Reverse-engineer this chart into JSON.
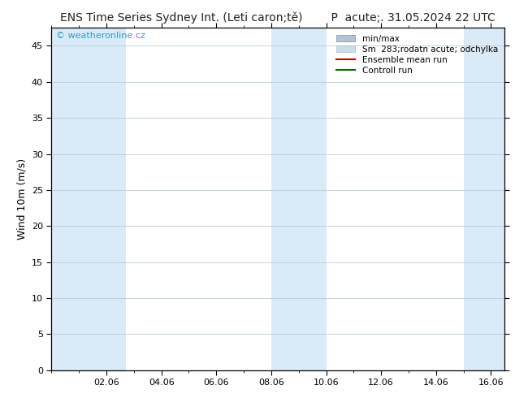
{
  "title_left": "ENS Time Series Sydney Int. (Leti caron;tě)",
  "title_right": "P  acute;. 31.05.2024 22 UTC",
  "ylabel": "Wind 10m (m/s)",
  "ylim": [
    0,
    47.5
  ],
  "yticks": [
    0,
    5,
    10,
    15,
    20,
    25,
    30,
    35,
    40,
    45
  ],
  "bg_color": "#ffffff",
  "plot_bg_color": "#ffffff",
  "band_color": "#daeaf7",
  "x_tick_labels": [
    "02.06",
    "04.06",
    "06.06",
    "08.06",
    "10.06",
    "12.06",
    "14.06",
    "16.06"
  ],
  "x_tick_positions": [
    2,
    4,
    6,
    8,
    10,
    12,
    14,
    16
  ],
  "xlim_min": 0.0,
  "xlim_max": 16.5,
  "watermark_text": "© weatheronline.cz",
  "watermark_color": "#3399cc",
  "legend_label_minmax": "min/max",
  "legend_label_std": "Sm  283;rodatn acute; odchylka",
  "legend_label_ens": "Ensemble mean run",
  "legend_label_ctrl": "Controll run",
  "color_minmax": "#b0c4d8",
  "color_std": "#ccdde8",
  "color_ens": "#cc0000",
  "color_ctrl": "#006600",
  "title_fontsize": 10,
  "tick_fontsize": 8,
  "ylabel_fontsize": 9,
  "legend_fontsize": 7.5,
  "grid_color": "#bbccdd",
  "blue_bands": [
    [
      0.0,
      1.5
    ],
    [
      1.8,
      3.0
    ],
    [
      8.0,
      10.0
    ],
    [
      15.0,
      16.5
    ]
  ]
}
